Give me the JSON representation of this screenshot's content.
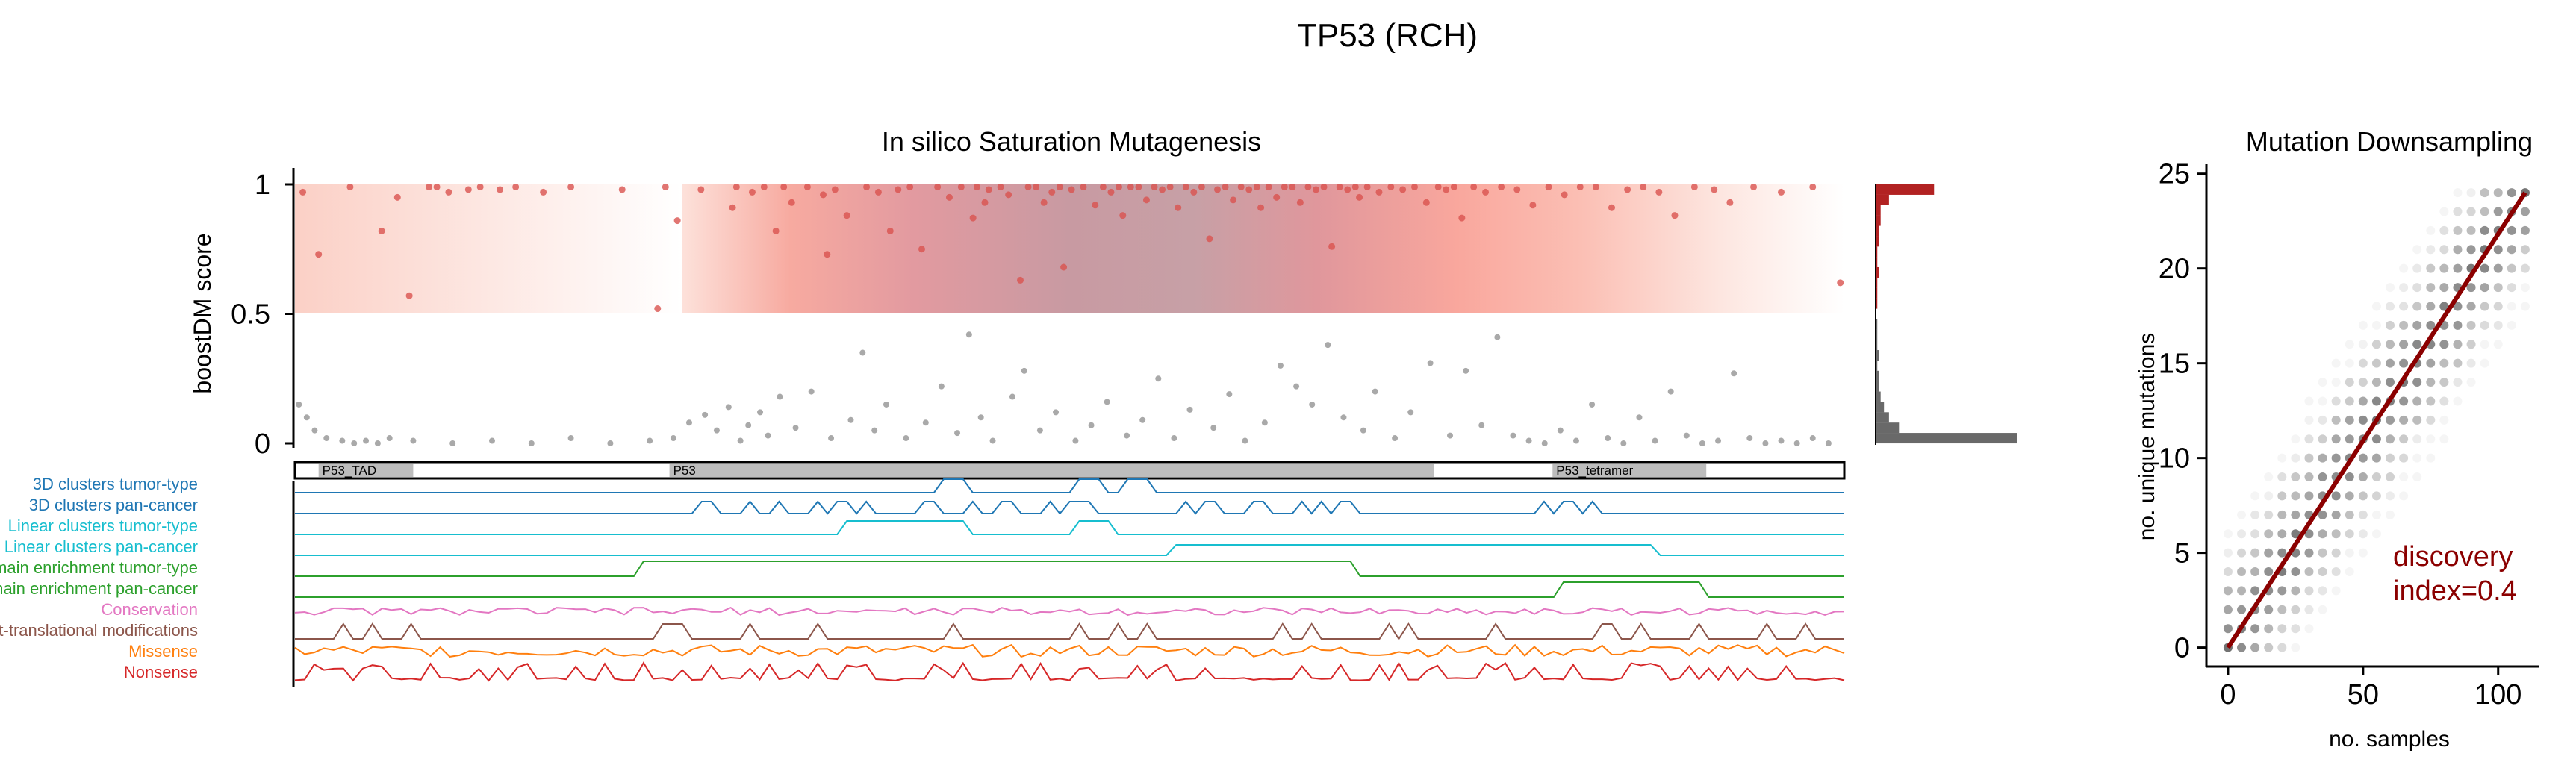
{
  "figure_title": "TP53 (RCH)",
  "chart_data": [
    {
      "type": "scatter",
      "title": "In silico Saturation Mutagenesis",
      "ylabel": "boostDM score",
      "xlabel": "",
      "ylim": [
        0,
        1
      ],
      "yticks": [
        "0",
        "0.5",
        "1"
      ],
      "threshold": 0.5,
      "n_positions": 393,
      "driver_points": {
        "x": [
          2,
          6,
          14,
          22,
          26,
          29,
          34,
          36,
          39,
          44,
          47,
          52,
          56,
          63,
          70,
          83,
          92,
          94,
          97,
          103,
          111,
          112,
          116,
          119,
          122,
          124,
          126,
          130,
          134,
          135,
          137,
          140,
          145,
          148,
          151,
          153,
          156,
          159,
          163,
          166,
          169,
          172,
          173,
          175,
          176,
          179,
          181,
          184,
          186,
          188,
          190,
          192,
          194,
          195,
          197,
          200,
          203,
          205,
          207,
          209,
          210,
          212,
          214,
          216,
          218,
          220,
          222,
          224,
          226,
          228,
          230,
          232,
          234,
          236,
          238,
          240,
          242,
          244,
          245,
          247,
          249,
          251,
          253,
          255,
          257,
          259,
          261,
          263,
          265,
          267,
          269,
          270,
          272,
          275,
          278,
          281,
          284,
          287,
          290,
          292,
          294,
          296,
          299,
          302,
          306,
          310,
          314,
          318,
          322,
          326,
          330,
          334,
          338,
          342,
          346,
          350,
          355,
          360,
          364,
          370,
          377,
          385,
          392
        ],
        "y": [
          0.97,
          0.73,
          0.99,
          0.82,
          0.95,
          0.57,
          0.99,
          0.99,
          0.97,
          0.98,
          0.99,
          0.98,
          0.99,
          0.97,
          0.99,
          0.98,
          0.52,
          0.99,
          0.86,
          0.98,
          0.91,
          0.99,
          0.97,
          0.99,
          0.82,
          0.99,
          0.93,
          0.99,
          0.96,
          0.73,
          0.98,
          0.88,
          0.99,
          0.97,
          0.82,
          0.98,
          0.99,
          0.75,
          0.99,
          0.95,
          0.99,
          0.87,
          0.99,
          0.93,
          0.98,
          0.99,
          0.96,
          0.63,
          0.99,
          0.99,
          0.93,
          0.97,
          0.99,
          0.68,
          0.98,
          0.99,
          0.92,
          0.99,
          0.97,
          0.99,
          0.88,
          0.99,
          0.99,
          0.94,
          0.99,
          0.98,
          0.99,
          0.91,
          0.99,
          0.97,
          0.99,
          0.79,
          0.98,
          0.99,
          0.94,
          0.99,
          0.98,
          0.99,
          0.91,
          0.99,
          0.95,
          0.99,
          0.99,
          0.93,
          0.99,
          0.98,
          0.99,
          0.76,
          0.99,
          0.98,
          0.99,
          0.95,
          0.99,
          0.97,
          0.99,
          0.98,
          0.99,
          0.93,
          0.99,
          0.98,
          0.99,
          0.87,
          0.99,
          0.97,
          0.99,
          0.98,
          0.92,
          0.99,
          0.96,
          0.99,
          0.99,
          0.91,
          0.98,
          0.99,
          0.97,
          0.88,
          0.99,
          0.98,
          0.93,
          0.99,
          0.97,
          0.99,
          0.62
        ]
      },
      "passenger_points": {
        "x": [
          1,
          3,
          5,
          8,
          12,
          15,
          18,
          21,
          24,
          30,
          40,
          50,
          60,
          70,
          80,
          90,
          96,
          100,
          104,
          107,
          110,
          113,
          115,
          118,
          120,
          123,
          127,
          131,
          136,
          141,
          144,
          147,
          150,
          155,
          160,
          164,
          168,
          171,
          174,
          177,
          182,
          185,
          189,
          193,
          198,
          202,
          206,
          211,
          215,
          219,
          223,
          227,
          233,
          237,
          241,
          246,
          250,
          254,
          258,
          262,
          266,
          271,
          274,
          279,
          283,
          288,
          293,
          297,
          301,
          305,
          309,
          313,
          317,
          321,
          325,
          329,
          333,
          337,
          341,
          345,
          349,
          353,
          357,
          361,
          365,
          369,
          373,
          377,
          381,
          385,
          389
        ],
        "y": [
          0.15,
          0.1,
          0.05,
          0.02,
          0.01,
          0.0,
          0.01,
          0.0,
          0.02,
          0.01,
          0.0,
          0.01,
          0.0,
          0.02,
          0.0,
          0.01,
          0.02,
          0.08,
          0.11,
          0.05,
          0.14,
          0.01,
          0.07,
          0.12,
          0.03,
          0.18,
          0.06,
          0.2,
          0.02,
          0.09,
          0.35,
          0.05,
          0.15,
          0.02,
          0.08,
          0.22,
          0.04,
          0.42,
          0.1,
          0.01,
          0.18,
          0.28,
          0.05,
          0.12,
          0.01,
          0.07,
          0.16,
          0.03,
          0.09,
          0.25,
          0.02,
          0.13,
          0.06,
          0.19,
          0.01,
          0.08,
          0.3,
          0.22,
          0.15,
          0.38,
          0.1,
          0.05,
          0.2,
          0.02,
          0.12,
          0.31,
          0.03,
          0.28,
          0.07,
          0.41,
          0.03,
          0.01,
          0.0,
          0.05,
          0.01,
          0.15,
          0.02,
          0.0,
          0.1,
          0.01,
          0.2,
          0.03,
          0.0,
          0.01,
          0.27,
          0.02,
          0.0,
          0.01,
          0.0,
          0.02,
          0.0
        ]
      },
      "histogram": {
        "bins": [
          0.02,
          0.06,
          0.1,
          0.14,
          0.18,
          0.22,
          0.26,
          0.3,
          0.34,
          0.38,
          0.42,
          0.46,
          0.54,
          0.58,
          0.62,
          0.66,
          0.7,
          0.74,
          0.78,
          0.82,
          0.86,
          0.9,
          0.94,
          0.98
        ],
        "counts": [
          85,
          14,
          8,
          5,
          3,
          2,
          2,
          1,
          2,
          1,
          1,
          1,
          1,
          1,
          1,
          2,
          1,
          1,
          2,
          2,
          3,
          3,
          8,
          35
        ]
      },
      "domains": [
        {
          "label": "P53_TAD",
          "start": 6,
          "end": 30
        },
        {
          "label": "P53",
          "start": 95,
          "end": 289
        },
        {
          "label": "P53_tetramer",
          "start": 319,
          "end": 358
        }
      ],
      "tracks": [
        {
          "name": "3D clusters tumor-type",
          "color": "#1f77b4"
        },
        {
          "name": "3D clusters pan-cancer",
          "color": "#1f77b4"
        },
        {
          "name": "Linear clusters tumor-type",
          "color": "#17becf"
        },
        {
          "name": "Linear clusters pan-cancer",
          "color": "#17becf"
        },
        {
          "name": "Domain enrichment tumor-type",
          "color": "#2ca02c"
        },
        {
          "name": "Domain enrichment pan-cancer",
          "color": "#2ca02c"
        },
        {
          "name": "Conservation",
          "color": "#e377c2"
        },
        {
          "name": "Post-translational modifications",
          "color": "#8c564b"
        },
        {
          "name": "Missense",
          "color": "#ff7f0e"
        },
        {
          "name": "Nonsense",
          "color": "#d62728"
        }
      ]
    },
    {
      "type": "scatter",
      "title": "Mutation Downsampling",
      "xlabel": "no. samples",
      "ylabel": "no. unique mutations",
      "xlim": [
        -8,
        115
      ],
      "ylim": [
        -1,
        25.5
      ],
      "xticks": [
        0,
        50,
        100
      ],
      "yticks": [
        0,
        5,
        10,
        15,
        20,
        25
      ],
      "fit_line": {
        "x": [
          0,
          110
        ],
        "y": [
          0,
          24
        ]
      },
      "annotation": "discovery\nindex=0.4",
      "annotation_color": "#8b0000"
    }
  ]
}
